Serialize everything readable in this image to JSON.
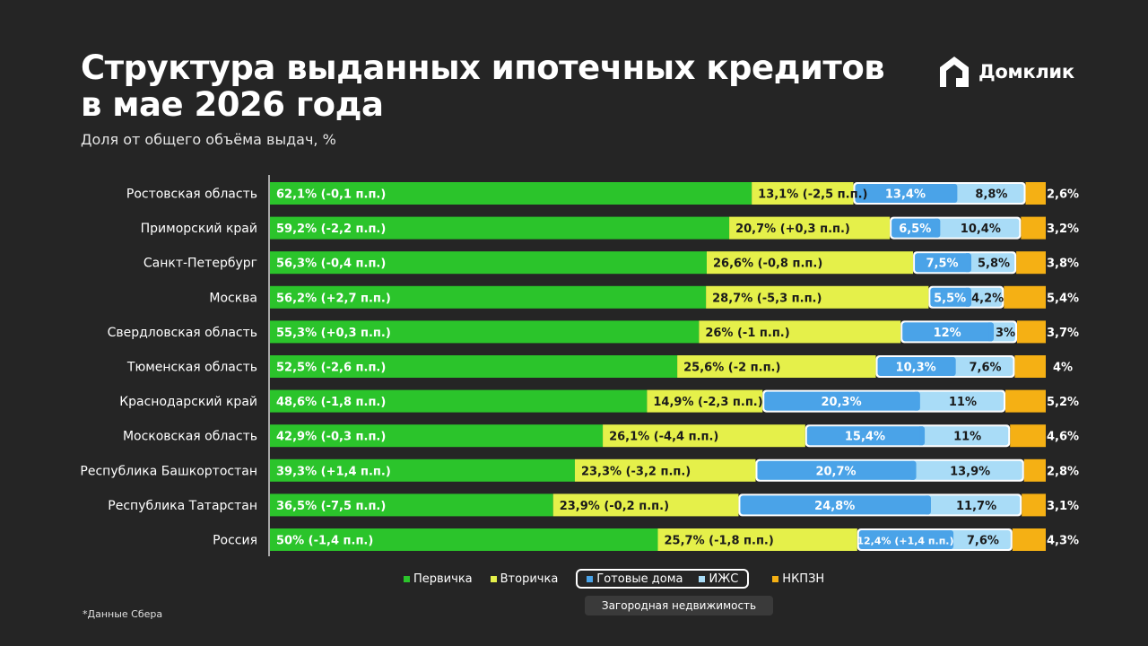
{
  "header": {
    "title_line1": "Структура выданных ипотечных кредитов",
    "title_line2": "в мае 2026 года",
    "subtitle": "Доля от общего объёма выдач, %",
    "brand": "Домклик"
  },
  "colors": {
    "primary": "#2bc42b",
    "secondary": "#e5f04a",
    "ready_houses": "#4aa3e8",
    "izhs": "#a9dcf7",
    "nkpzn": "#f5b014",
    "background": "#252525"
  },
  "chart_data": {
    "type": "bar",
    "orientation": "horizontal",
    "stacked": true,
    "xlim": [
      0,
      100
    ],
    "categories": [
      "Ростовская область",
      "Приморский край",
      "Санкт-Петербург",
      "Москва",
      "Свердловская область",
      "Тюменская область",
      "Краснодарский край",
      "Московская область",
      "Республика Башкортостан",
      "Республика Татарстан",
      "Россия"
    ],
    "series": [
      {
        "key": "primary",
        "name": "Первичка",
        "values": [
          62.1,
          59.2,
          56.3,
          56.2,
          55.3,
          52.5,
          48.6,
          42.9,
          39.3,
          36.5,
          50
        ],
        "labels": [
          "62,1% (-0,1 п.п.)",
          "59,2% (-2,2 п.п.)",
          "56,3% (-0,4 п.п.)",
          "56,2% (+2,7 п.п.)",
          "55,3% (+0,3 п.п.)",
          "52,5% (-2,6 п.п.)",
          "48,6% (-1,8 п.п.)",
          "42,9% (-0,3 п.п.)",
          "39,3% (+1,4 п.п.)",
          "36,5% (-7,5 п.п.)",
          "50% (-1,4 п.п.)"
        ]
      },
      {
        "key": "secondary",
        "name": "Вторичка",
        "values": [
          13.1,
          20.7,
          26.6,
          28.7,
          26,
          25.6,
          14.9,
          26.1,
          23.3,
          23.9,
          25.7
        ],
        "labels": [
          "13,1% (-2,5 п.п.)",
          "20,7% (+0,3 п.п.)",
          "26,6% (-0,8 п.п.)",
          "28,7% (-5,3 п.п.)",
          "26% (-1 п.п.)",
          "25,6% (-2 п.п.)",
          "14,9% (-2,3 п.п.)",
          "26,1% (-4,4 п.п.)",
          "23,3% (-3,2 п.п.)",
          "23,9% (-0,2 п.п.)",
          "25,7% (-1,8 п.п.)"
        ]
      },
      {
        "key": "ready_houses",
        "name": "Готовые дома",
        "values": [
          13.4,
          6.5,
          7.5,
          5.5,
          12,
          10.3,
          20.3,
          15.4,
          20.7,
          24.8,
          12.4
        ],
        "labels": [
          "13,4%",
          "6,5%",
          "7,5%",
          "5,5%",
          "12%",
          "10,3%",
          "20,3%",
          "15,4%",
          "20,7%",
          "24,8%",
          "12,4% (+1,4 п.п.)"
        ]
      },
      {
        "key": "izhs",
        "name": "ИЖС",
        "values": [
          8.8,
          10.4,
          5.8,
          4.2,
          3,
          7.6,
          11,
          11,
          13.9,
          11.7,
          7.6
        ],
        "labels": [
          "8,8%",
          "10,4%",
          "5,8%",
          "4,2%",
          "3%",
          "7,6%",
          "11%",
          "11%",
          "13,9%",
          "11,7%",
          "7,6%"
        ]
      },
      {
        "key": "nkpzn",
        "name": "НКПЗН",
        "values": [
          2.6,
          3.2,
          3.8,
          5.4,
          3.7,
          4,
          5.2,
          4.6,
          2.8,
          3.1,
          4.3
        ],
        "labels": [
          "2,6%",
          "3,2%",
          "3,8%",
          "5,4%",
          "3,7%",
          "4%",
          "5,2%",
          "4,6%",
          "2,8%",
          "3,1%",
          "4,3%"
        ]
      }
    ]
  },
  "legend": {
    "primary": "Первичка",
    "secondary": "Вторичка",
    "ready_houses": "Готовые дома",
    "izhs": "ИЖС",
    "nkpzn": "НКПЗН",
    "group_caption": "Загородная недвижимость"
  },
  "footnote": "*Данные Сбера"
}
